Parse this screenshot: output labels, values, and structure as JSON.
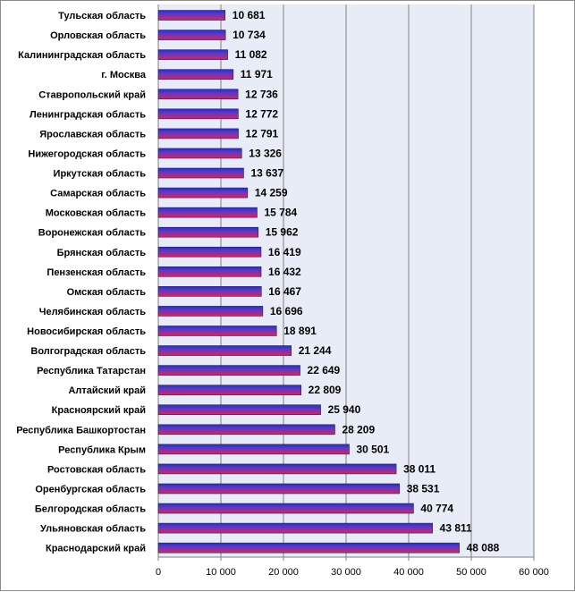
{
  "chart_data": {
    "type": "bar",
    "orientation": "horizontal",
    "categories": [
      "Тульская  область",
      "Орловская  область",
      "Калининградская  область",
      "г. Москва",
      "Ставропольский  край",
      "Ленинградская  область",
      "Ярославская  область",
      "Нижегородская  область",
      "Иркутская  область",
      "Самарская  область",
      "Московская  область",
      "Воронежская  область",
      "Брянская  область",
      "Пензенская  область",
      "Омская  область",
      "Челябинская  область",
      "Новосибирская  область",
      "Волгоградская  область",
      "Республика  Татарстан",
      "Алтайский  край",
      "Красноярский  край",
      "Республика  Башкортостан",
      "Республика  Крым",
      "Ростовская  область",
      "Оренбургская  область",
      "Белгородская  область",
      "Ульяновская  область",
      "Краснодарский  край"
    ],
    "values": [
      10681,
      10734,
      11082,
      11971,
      12736,
      12772,
      12791,
      13326,
      13637,
      14259,
      15784,
      15962,
      16419,
      16432,
      16467,
      16696,
      18891,
      21244,
      22649,
      22809,
      25940,
      28209,
      30501,
      38011,
      38531,
      40774,
      43811,
      48088
    ],
    "value_labels": [
      "10 681",
      "10 734",
      "11 082",
      "11 971",
      "12 736",
      "12 772",
      "12 791",
      "13 326",
      "13 637",
      "14 259",
      "15 784",
      "15 962",
      "16 419",
      "16 432",
      "16 467",
      "16 696",
      "18 891",
      "21 244",
      "22 649",
      "22 809",
      "25 940",
      "28 209",
      "30 501",
      "38 011",
      "38 531",
      "40 774",
      "43 811",
      "48 088"
    ],
    "x_ticks": [
      "0",
      "10 000",
      "20 000",
      "30 000",
      "40 000",
      "50 000",
      "60 000"
    ],
    "xlim": [
      0,
      60000
    ],
    "grid": true,
    "legend": "none",
    "title": "",
    "xlabel": "",
    "ylabel": ""
  },
  "colors": {
    "plot_background": "#e8ecf6",
    "gridline": "#7f7f7f",
    "bar_top": "#2b2bd0",
    "bar_bottom": "#e0205a",
    "bar_outline": "#202060",
    "frame": "#8c8c8c"
  }
}
